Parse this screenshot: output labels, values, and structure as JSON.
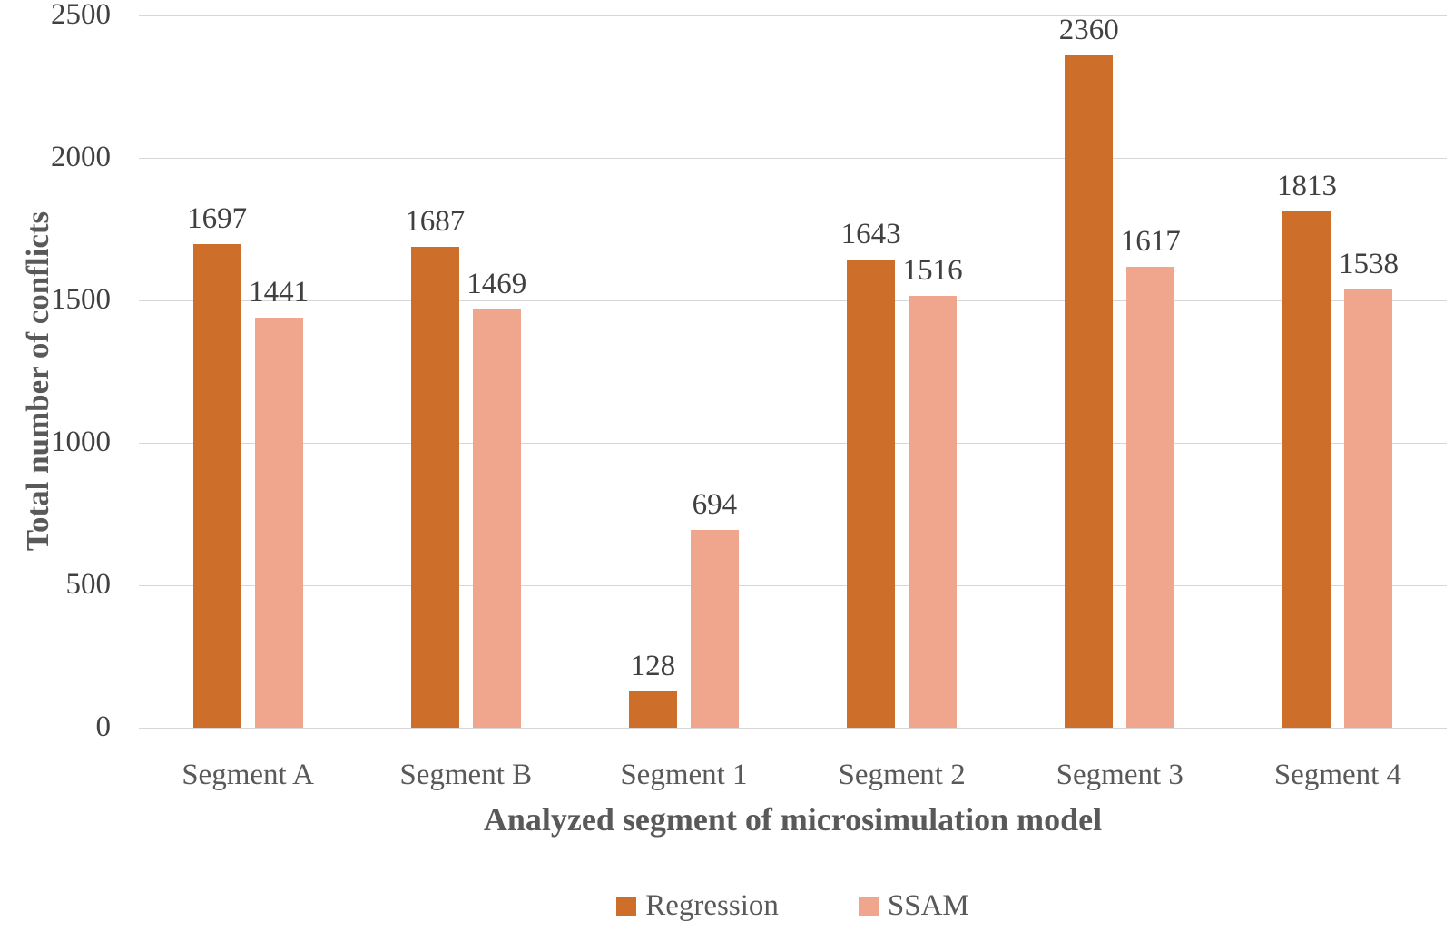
{
  "figure": {
    "background": "#ffffff"
  },
  "colors": {
    "gridline": "#d7d7d7",
    "tick_text": "#404040",
    "data_label_text": "#404040",
    "axis_title_text": "#595959",
    "category_text": "#595959",
    "legend_text": "#595959",
    "regression_bar": "#cd6e2b",
    "ssam_bar": "#f0a68c"
  },
  "chart_data": {
    "type": "bar",
    "title": "",
    "categories": [
      "Segment A",
      "Segment B",
      "Segment 1",
      "Segment 2",
      "Segment 3",
      "Segment 4"
    ],
    "series": [
      {
        "name": "Regression",
        "color": "#cd6e2b",
        "values": [
          1697,
          1687,
          128,
          1643,
          2360,
          1813
        ]
      },
      {
        "name": "SSAM",
        "color": "#f0a68c",
        "values": [
          1441,
          1469,
          694,
          1516,
          1617,
          1538
        ]
      }
    ],
    "xlabel": "Analyzed segment of microsimulation model",
    "ylabel": "Total number of conflicts",
    "ylim": [
      0,
      2500
    ],
    "yticks": [
      0,
      500,
      1000,
      1500,
      2000,
      2500
    ],
    "grid": true,
    "data_labels": true,
    "legend_position": "bottom"
  }
}
